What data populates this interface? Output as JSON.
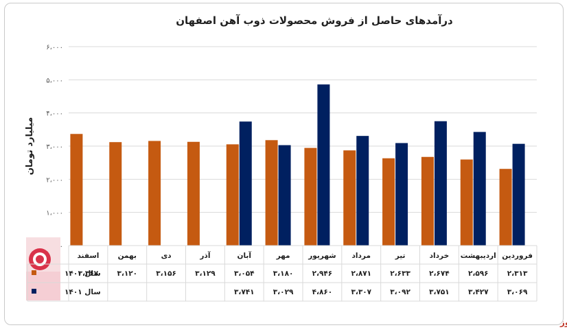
{
  "brand": "بورس نیوز",
  "chart_data": {
    "type": "bar",
    "title": "درآمدهای حاصل از فروش محصولات ذوب آهن اصفهان",
    "ylabel": "میلیارد تومان",
    "ylim": [
      0,
      6000
    ],
    "yticks": [
      "۰",
      "۱،۰۰۰",
      "۲،۰۰۰",
      "۳،۰۰۰",
      "۴،۰۰۰",
      "۵،۰۰۰",
      "۶،۰۰۰"
    ],
    "ytick_values": [
      0,
      1000,
      2000,
      3000,
      4000,
      5000,
      6000
    ],
    "grid": true,
    "legend": "table-left",
    "categories": [
      "فروردین",
      "اردیبهشت",
      "خرداد",
      "تیر",
      "مرداد",
      "شهریور",
      "مهر",
      "آبان",
      "آذر",
      "دی",
      "بهمن",
      "اسفند"
    ],
    "series": [
      {
        "name": "سال ۱۴۰۰",
        "color": "#c55a11",
        "values": [
          2313,
          2596,
          2674,
          2633,
          2871,
          2946,
          3180,
          3054,
          3129,
          3156,
          3120,
          3367
        ],
        "labels": [
          "۲،۳۱۳",
          "۲،۵۹۶",
          "۲،۶۷۴",
          "۲،۶۳۳",
          "۲،۸۷۱",
          "۲،۹۴۶",
          "۳،۱۸۰",
          "۳،۰۵۴",
          "۳،۱۲۹",
          "۳،۱۵۶",
          "۳،۱۲۰",
          "۳،۳۶۷"
        ]
      },
      {
        "name": "سال ۱۴۰۱",
        "color": "#002060",
        "values": [
          3069,
          3427,
          3751,
          3092,
          3307,
          4860,
          3029,
          3741,
          null,
          null,
          null,
          null
        ],
        "labels": [
          "۳،۰۶۹",
          "۳،۴۲۷",
          "۳،۷۵۱",
          "۳،۰۹۲",
          "۳،۳۰۷",
          "۴،۸۶۰",
          "۳،۰۲۹",
          "۳،۷۴۱",
          "",
          "",
          "",
          ""
        ]
      }
    ]
  }
}
